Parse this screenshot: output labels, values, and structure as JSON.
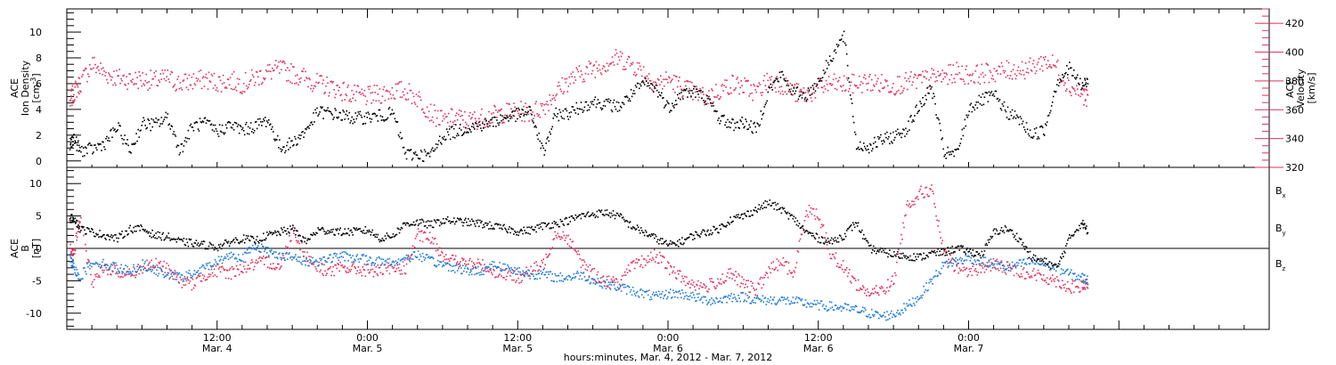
{
  "chart_data": [
    {
      "type": "scatter",
      "panel": "top",
      "left_axis": {
        "label_lines": [
          "ACE",
          "Ion Density",
          "[cm^-3]"
        ],
        "range": [
          -0.5,
          11.8
        ],
        "ticks": [
          0,
          2,
          4,
          6,
          8,
          10
        ]
      },
      "right_axis": {
        "label_lines": [
          "ACE",
          "Velocity",
          "[km/s]"
        ],
        "range": [
          320,
          430
        ],
        "ticks": [
          320,
          340,
          360,
          380,
          400,
          420
        ],
        "color": "#e0305a"
      },
      "series": [
        {
          "name": "Ion Density",
          "axis": "left",
          "color": "#000000",
          "x": [
            0.2,
            0.5,
            1,
            2,
            3,
            4,
            5,
            6,
            7,
            8,
            9,
            10,
            11,
            12,
            13,
            14,
            15,
            16,
            17,
            18,
            19,
            20,
            21,
            22,
            23,
            24,
            25,
            26,
            27,
            28,
            29,
            30,
            31,
            32,
            33,
            34,
            35,
            36,
            37,
            38,
            39,
            40,
            41,
            42,
            43,
            44,
            45,
            46,
            47,
            48,
            49,
            50,
            51,
            52,
            53,
            54,
            55,
            56,
            57,
            58,
            59,
            60,
            61,
            62,
            63,
            64,
            65,
            66,
            67,
            68,
            69,
            70,
            71,
            72,
            73,
            74,
            75,
            76,
            77,
            78,
            79,
            80,
            81,
            81.5
          ],
          "y": [
            1.2,
            1.8,
            0.8,
            0.9,
            1.4,
            2.6,
            0.8,
            2.9,
            2.8,
            3.4,
            0.8,
            2.7,
            2.9,
            2.3,
            2.8,
            2.4,
            2.7,
            3.2,
            1.0,
            1.4,
            2.3,
            3.8,
            3.7,
            3.5,
            3.3,
            3.4,
            3.5,
            3.7,
            0.5,
            0.5,
            0.4,
            2.0,
            2.3,
            2.6,
            2.8,
            3.0,
            3.4,
            3.6,
            3.8,
            0.6,
            3.6,
            3.7,
            4.2,
            4.6,
            4.4,
            4.2,
            5.1,
            6.0,
            5.6,
            4.1,
            5.2,
            5.4,
            4.9,
            3.4,
            2.8,
            3.0,
            2.4,
            5.5,
            6.7,
            5.3,
            5.1,
            6.2,
            8.1,
            9.7,
            1.2,
            1.1,
            1.6,
            1.9,
            2.5,
            4.2,
            5.7,
            0.6,
            0.5,
            4.1,
            4.7,
            5.1,
            3.8,
            3.2,
            2.0,
            2.4,
            6.1,
            7.2,
            5.8,
            6.2
          ]
        },
        {
          "name": "Velocity",
          "axis": "right",
          "color": "#e0305a",
          "x": [
            0.2,
            0.5,
            1,
            2,
            3,
            4,
            5,
            6,
            7,
            8,
            9,
            10,
            11,
            12,
            13,
            14,
            15,
            16,
            17,
            18,
            19,
            20,
            21,
            22,
            23,
            24,
            25,
            26,
            27,
            28,
            29,
            30,
            31,
            32,
            33,
            34,
            35,
            36,
            37,
            38,
            39,
            40,
            41,
            42,
            43,
            44,
            45,
            46,
            47,
            48,
            49,
            50,
            51,
            52,
            53,
            54,
            55,
            56,
            57,
            58,
            59,
            60,
            61,
            62,
            63,
            64,
            65,
            66,
            67,
            68,
            69,
            70,
            71,
            72,
            73,
            74,
            75,
            76,
            77,
            78,
            79,
            80,
            81,
            81.5
          ],
          "y": [
            365,
            372,
            378,
            392,
            385,
            382,
            381,
            381,
            380,
            382,
            378,
            380,
            381,
            379,
            380,
            378,
            382,
            386,
            388,
            385,
            382,
            378,
            376,
            373,
            370,
            369,
            371,
            373,
            373,
            368,
            358,
            352,
            355,
            352,
            354,
            356,
            358,
            359,
            358,
            362,
            372,
            380,
            385,
            389,
            392,
            396,
            392,
            386,
            378,
            381,
            376,
            372,
            368,
            373,
            378,
            376,
            372,
            381,
            378,
            372,
            370,
            375,
            378,
            377,
            378,
            379,
            378,
            377,
            379,
            380,
            382,
            383,
            386,
            384,
            385,
            386,
            387,
            388,
            389,
            394,
            390,
            376,
            372,
            366
          ]
        }
      ]
    },
    {
      "type": "scatter",
      "panel": "bottom",
      "left_axis": {
        "label_lines": [
          "ACE",
          "B",
          "[nT]"
        ],
        "range": [
          -12.5,
          12.5
        ],
        "ticks": [
          -10,
          -5,
          0,
          5,
          10
        ]
      },
      "reference_line": 0,
      "series": [
        {
          "name": "Bx",
          "color": "#000000",
          "x": [
            0.2,
            0.5,
            1,
            2,
            3,
            4,
            5,
            6,
            7,
            8,
            9,
            10,
            11,
            12,
            13,
            14,
            15,
            16,
            17,
            18,
            19,
            20,
            21,
            22,
            23,
            24,
            25,
            26,
            27,
            28,
            29,
            30,
            31,
            32,
            33,
            34,
            35,
            36,
            37,
            38,
            39,
            40,
            41,
            42,
            43,
            44,
            45,
            46,
            47,
            48,
            49,
            50,
            51,
            52,
            53,
            54,
            55,
            56,
            57,
            58,
            59,
            60,
            61,
            62,
            63,
            64,
            65,
            66,
            67,
            68,
            69,
            70,
            71,
            72,
            73,
            74,
            75,
            76,
            77,
            78,
            79,
            80,
            81,
            81.5
          ],
          "y": [
            4.5,
            4.8,
            3.0,
            2.5,
            2.0,
            1.5,
            3.0,
            3.0,
            2.0,
            1.8,
            1.0,
            0.8,
            0.5,
            0.2,
            1.0,
            1.5,
            1.2,
            2.0,
            2.5,
            3.0,
            1.0,
            2.8,
            2.7,
            2.5,
            2.6,
            2.8,
            1.5,
            2.0,
            3.8,
            4.0,
            3.6,
            4.3,
            4.2,
            4.0,
            3.8,
            3.4,
            3.0,
            2.6,
            2.8,
            3.5,
            3.8,
            4.3,
            5.0,
            5.3,
            5.5,
            5.0,
            3.5,
            2.5,
            1.5,
            0.5,
            1.0,
            2.0,
            2.5,
            3.0,
            4.5,
            5.0,
            6.0,
            7.0,
            6.0,
            4.5,
            2.5,
            1.5,
            1.0,
            2.0,
            4.0,
            0.0,
            -0.5,
            -1.0,
            -1.2,
            -1.4,
            -0.8,
            -0.6,
            0.0,
            -0.5,
            -1.0,
            2.5,
            3.0,
            1.5,
            -1.5,
            -2.0,
            -3.0,
            1.5,
            4.0,
            2.5
          ]
        },
        {
          "name": "By",
          "color": "#1e7ad8",
          "x": [
            0.2,
            0.5,
            1,
            2,
            3,
            4,
            5,
            6,
            7,
            8,
            9,
            10,
            11,
            12,
            13,
            14,
            15,
            16,
            17,
            18,
            19,
            20,
            21,
            22,
            23,
            24,
            25,
            26,
            27,
            28,
            29,
            30,
            31,
            32,
            33,
            34,
            35,
            36,
            37,
            38,
            39,
            40,
            41,
            42,
            43,
            44,
            45,
            46,
            47,
            48,
            49,
            50,
            51,
            52,
            53,
            54,
            55,
            56,
            57,
            58,
            59,
            60,
            61,
            62,
            63,
            64,
            65,
            66,
            67,
            68,
            69,
            70,
            71,
            72,
            73,
            74,
            75,
            76,
            77,
            78,
            79,
            80,
            81,
            81.5
          ],
          "y": [
            -1.5,
            -3.0,
            -4.5,
            -2.0,
            -2.5,
            -3.0,
            -3.5,
            -2.5,
            -3.5,
            -4.0,
            -4.5,
            -4.0,
            -3.0,
            -2.0,
            -1.0,
            -1.5,
            0.5,
            -0.5,
            -1.0,
            -1.5,
            -2.0,
            -2.0,
            -1.5,
            -1.2,
            -1.5,
            -1.8,
            -2.0,
            -2.2,
            -1.5,
            -1.0,
            -2.0,
            -2.5,
            -3.0,
            -3.5,
            -3.5,
            -2.5,
            -3.0,
            -3.5,
            -4.0,
            -4.0,
            -4.5,
            -4.5,
            -4.0,
            -5.0,
            -5.5,
            -6.0,
            -6.5,
            -7.0,
            -7.5,
            -7.0,
            -7.0,
            -7.5,
            -8.0,
            -8.0,
            -7.5,
            -7.5,
            -8.0,
            -8.0,
            -8.0,
            -8.2,
            -8.5,
            -8.8,
            -9.0,
            -9.2,
            -9.5,
            -10.0,
            -10.5,
            -10.2,
            -9.0,
            -7.5,
            -5.0,
            -2.5,
            -2.0,
            -1.5,
            -2.0,
            -2.5,
            -3.0,
            -2.5,
            -2.0,
            -2.5,
            -3.0,
            -4.0,
            -4.5,
            -5.0
          ]
        },
        {
          "name": "Bz",
          "color": "#e0305a",
          "x": [
            0.2,
            0.5,
            1,
            2,
            3,
            4,
            5,
            6,
            7,
            8,
            9,
            10,
            11,
            12,
            13,
            14,
            15,
            16,
            17,
            18,
            19,
            20,
            21,
            22,
            23,
            24,
            25,
            26,
            27,
            28,
            29,
            30,
            31,
            32,
            33,
            34,
            35,
            36,
            37,
            38,
            39,
            40,
            41,
            42,
            43,
            44,
            45,
            46,
            47,
            48,
            49,
            50,
            51,
            52,
            53,
            54,
            55,
            56,
            57,
            58,
            59,
            60,
            61,
            62,
            63,
            64,
            65,
            66,
            67,
            68,
            69,
            70,
            71,
            72,
            73,
            74,
            75,
            76,
            77,
            78,
            79,
            80,
            81,
            81.5
          ],
          "y": [
            0.5,
            -1.0,
            4.5,
            -5.5,
            -3.0,
            -3.5,
            -4.0,
            -3.0,
            -2.5,
            -3.0,
            -5.0,
            -5.5,
            -4.0,
            -3.5,
            -3.8,
            -3.0,
            -2.5,
            -2.0,
            -3.0,
            3.0,
            -1.0,
            -3.0,
            -3.5,
            -3.0,
            -3.2,
            -3.4,
            -3.5,
            -3.3,
            -3.0,
            2.0,
            1.5,
            -1.0,
            -2.0,
            -2.5,
            -2.5,
            -3.5,
            -4.0,
            -4.5,
            -3.5,
            -2.5,
            2.5,
            1.5,
            -2.0,
            -4.0,
            -5.0,
            -5.5,
            -3.0,
            -2.0,
            -1.0,
            -3.0,
            -4.5,
            -5.5,
            -6.0,
            -5.0,
            -4.0,
            -5.5,
            -6.5,
            -3.5,
            -2.0,
            -4.0,
            6.0,
            5.0,
            -1.0,
            -3.0,
            -5.5,
            -7.0,
            -6.5,
            -5.0,
            6.5,
            8.5,
            9.0,
            -1.0,
            -3.0,
            -3.5,
            -3.0,
            -2.5,
            -3.0,
            -3.5,
            -4.0,
            -4.5,
            -5.0,
            -6.0,
            -6.0,
            -5.5
          ]
        }
      ],
      "legend": [
        "Bx",
        "By",
        "Bz"
      ]
    }
  ],
  "x_axis": {
    "range_hours": [
      0,
      96
    ],
    "ticks": [
      {
        "hour": 12,
        "time": "12:00",
        "date": "Mar. 4"
      },
      {
        "hour": 24,
        "time": "0:00",
        "date": "Mar. 5"
      },
      {
        "hour": 36,
        "time": "12:00",
        "date": "Mar. 5"
      },
      {
        "hour": 48,
        "time": "0:00",
        "date": "Mar. 6"
      },
      {
        "hour": 60,
        "time": "12:00",
        "date": "Mar. 6"
      },
      {
        "hour": 72,
        "time": "0:00",
        "date": "Mar. 7"
      }
    ],
    "title": "hours:minutes, Mar.  4, 2012 - Mar.  7, 2012"
  }
}
